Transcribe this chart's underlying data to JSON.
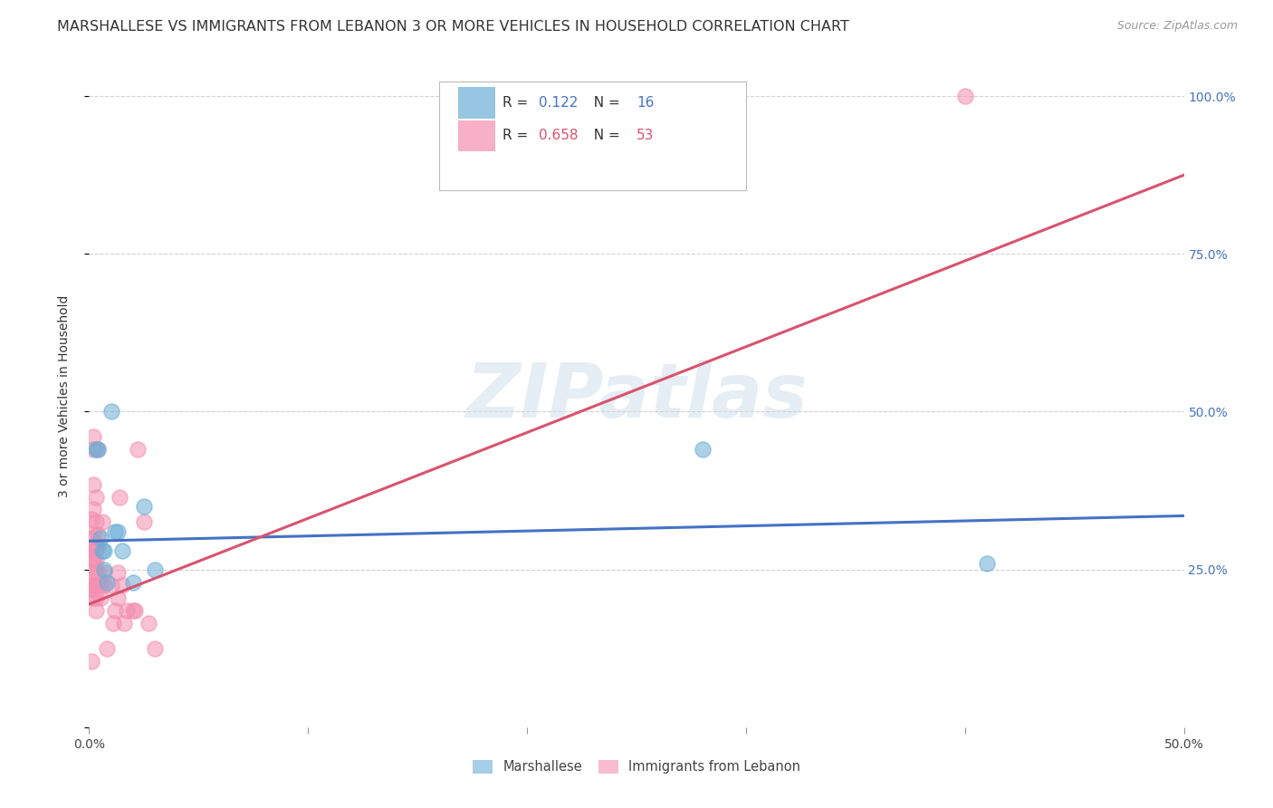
{
  "title": "MARSHALLESE VS IMMIGRANTS FROM LEBANON 3 OR MORE VEHICLES IN HOUSEHOLD CORRELATION CHART",
  "source": "Source: ZipAtlas.com",
  "ylabel": "3 or more Vehicles in Household",
  "xlim": [
    0.0,
    0.5
  ],
  "ylim": [
    0.0,
    1.05
  ],
  "yticks": [
    0.0,
    0.25,
    0.5,
    0.75,
    1.0
  ],
  "background_color": "#ffffff",
  "watermark_text": "ZIPatlas",
  "marshallese_scatter": [
    [
      0.003,
      0.44
    ],
    [
      0.004,
      0.44
    ],
    [
      0.005,
      0.3
    ],
    [
      0.006,
      0.28
    ],
    [
      0.007,
      0.28
    ],
    [
      0.007,
      0.25
    ],
    [
      0.008,
      0.23
    ],
    [
      0.01,
      0.5
    ],
    [
      0.012,
      0.31
    ],
    [
      0.013,
      0.31
    ],
    [
      0.015,
      0.28
    ],
    [
      0.02,
      0.23
    ],
    [
      0.025,
      0.35
    ],
    [
      0.03,
      0.25
    ],
    [
      0.28,
      0.44
    ],
    [
      0.41,
      0.26
    ]
  ],
  "lebanon_scatter": [
    [
      0.001,
      0.105
    ],
    [
      0.001,
      0.22
    ],
    [
      0.001,
      0.27
    ],
    [
      0.001,
      0.3
    ],
    [
      0.001,
      0.33
    ],
    [
      0.002,
      0.205
    ],
    [
      0.002,
      0.225
    ],
    [
      0.002,
      0.245
    ],
    [
      0.002,
      0.265
    ],
    [
      0.002,
      0.265
    ],
    [
      0.002,
      0.285
    ],
    [
      0.002,
      0.305
    ],
    [
      0.002,
      0.345
    ],
    [
      0.002,
      0.385
    ],
    [
      0.002,
      0.44
    ],
    [
      0.002,
      0.46
    ],
    [
      0.003,
      0.185
    ],
    [
      0.003,
      0.205
    ],
    [
      0.003,
      0.225
    ],
    [
      0.003,
      0.225
    ],
    [
      0.003,
      0.245
    ],
    [
      0.003,
      0.265
    ],
    [
      0.003,
      0.285
    ],
    [
      0.003,
      0.285
    ],
    [
      0.003,
      0.325
    ],
    [
      0.003,
      0.365
    ],
    [
      0.004,
      0.225
    ],
    [
      0.004,
      0.245
    ],
    [
      0.004,
      0.285
    ],
    [
      0.004,
      0.305
    ],
    [
      0.004,
      0.44
    ],
    [
      0.005,
      0.205
    ],
    [
      0.005,
      0.225
    ],
    [
      0.006,
      0.325
    ],
    [
      0.007,
      0.225
    ],
    [
      0.007,
      0.245
    ],
    [
      0.008,
      0.125
    ],
    [
      0.01,
      0.225
    ],
    [
      0.011,
      0.165
    ],
    [
      0.012,
      0.185
    ],
    [
      0.013,
      0.205
    ],
    [
      0.013,
      0.245
    ],
    [
      0.014,
      0.365
    ],
    [
      0.015,
      0.225
    ],
    [
      0.016,
      0.165
    ],
    [
      0.017,
      0.185
    ],
    [
      0.02,
      0.185
    ],
    [
      0.021,
      0.185
    ],
    [
      0.022,
      0.44
    ],
    [
      0.025,
      0.325
    ],
    [
      0.027,
      0.165
    ],
    [
      0.03,
      0.125
    ],
    [
      0.4,
      1.0
    ]
  ],
  "marshallese_line_x": [
    0.0,
    0.5
  ],
  "marshallese_line_y": [
    0.295,
    0.335
  ],
  "lebanon_line_x": [
    0.0,
    0.5
  ],
  "lebanon_line_y": [
    0.195,
    0.875
  ],
  "marshallese_color": "#6baed6",
  "lebanon_color": "#f48fb1",
  "line_marshallese_color": "#4472c4",
  "line_lebanon_color": "#d9536e",
  "legend_r1": "R = ",
  "legend_v1": "0.122",
  "legend_n1": "  N = ",
  "legend_nv1": "16",
  "legend_r2": "R = ",
  "legend_v2": "0.658",
  "legend_n2": "  N = ",
  "legend_nv2": "53",
  "title_fontsize": 11.5,
  "source_fontsize": 9,
  "axis_label_fontsize": 10,
  "tick_fontsize": 10,
  "legend_fontsize": 11
}
